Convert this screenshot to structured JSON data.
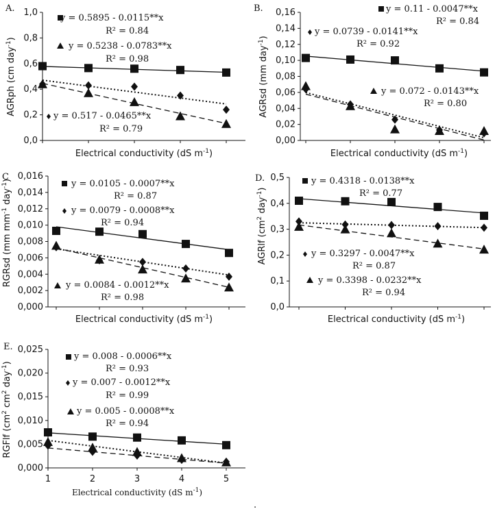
{
  "chart_data": [
    {
      "panel": "A.",
      "type": "scatter",
      "xlabel": "Electrical conductivity (dS m",
      "xlabel_sup": "-1",
      "xlabel_end": ")",
      "ylabel": "AGRph (cm day",
      "ylabel_sup": "-1",
      "ylabel_end": ")",
      "ylim": [
        0,
        1.0
      ],
      "yticks": [
        "0,0",
        "0,2",
        "0,4",
        "0,6",
        "0,8",
        "1,0"
      ],
      "x": [
        1,
        2,
        3,
        4,
        5
      ],
      "series": [
        {
          "marker": "square",
          "line": "solid",
          "values": [
            0.58,
            0.565,
            0.56,
            0.55,
            0.53
          ],
          "fit": [
            0.5895,
            -0.0115
          ],
          "eq": "y = 0.5895 - 0.0115**x",
          "r2": "R² = 0.84"
        },
        {
          "marker": "triangle",
          "line": "dashed",
          "values": [
            0.44,
            0.37,
            0.3,
            0.19,
            0.13
          ],
          "fit": [
            0.5238,
            -0.0783
          ],
          "eq": "y = 0.5238 - 0.0783**x",
          "r2": "R² = 0.98"
        },
        {
          "marker": "diamond",
          "line": "dotted",
          "values": [
            0.44,
            0.43,
            0.42,
            0.35,
            0.24
          ],
          "fit": [
            0.517,
            -0.0465
          ],
          "eq": "y = 0.517 - 0.0465**x",
          "r2": "R² = 0.79"
        }
      ]
    },
    {
      "panel": "B.",
      "type": "scatter",
      "xlabel": "Electrical conductivity (dS m",
      "xlabel_sup": "-1",
      "xlabel_end": ")",
      "ylabel": "AGRsd (mm day",
      "ylabel_sup": "-1",
      "ylabel_end": ")",
      "ylim": [
        0,
        0.16
      ],
      "yticks": [
        "0,00",
        "0,02",
        "0,04",
        "0,06",
        "0,08",
        "0,10",
        "0,12",
        "0,14",
        "0,16"
      ],
      "x": [
        1,
        2,
        3,
        4,
        5
      ],
      "series": [
        {
          "marker": "square",
          "line": "solid",
          "values": [
            0.103,
            0.101,
            0.1,
            0.09,
            0.085
          ],
          "fit": [
            0.11,
            -0.0047
          ],
          "eq": "y = 0.11 - 0.0047**x",
          "r2": "R² = 0.84"
        },
        {
          "marker": "diamond",
          "line": "dotted",
          "values": [
            0.064,
            0.045,
            0.026,
            0.013,
            0.009
          ],
          "fit": [
            0.0739,
            -0.0141
          ],
          "eq": "y = 0.0739 - 0.0141**x",
          "r2": "R² = 0.92"
        },
        {
          "marker": "triangle",
          "line": "dashed",
          "values": [
            0.068,
            0.043,
            0.014,
            0.012,
            0.012
          ],
          "fit": [
            0.072,
            -0.0143
          ],
          "eq": "y = 0.072 - 0.0143**x",
          "r2": "R² = 0.80"
        }
      ]
    },
    {
      "panel": "C",
      "type": "scatter",
      "xlabel": "Electrical conductivity (dS m",
      "xlabel_sup": "-1",
      "xlabel_end": ")",
      "ylabel": "RGRsd (mm mm",
      "ylabel_sup": "-1",
      "ylabel_end": " day",
      "ylabel_sup2": "-1",
      "ylabel_end2": ")",
      "ylim": [
        0,
        0.016
      ],
      "yticks": [
        "0,000",
        "0,002",
        "0,004",
        "0,006",
        "0,008",
        "0,010",
        "0,012",
        "0,014",
        "0,016"
      ],
      "x": [
        1,
        2,
        3,
        4,
        5
      ],
      "series": [
        {
          "marker": "square",
          "line": "solid",
          "values": [
            0.0093,
            0.0092,
            0.0089,
            0.0077,
            0.0066
          ],
          "fit": [
            0.0105,
            -0.0007
          ],
          "eq": "y = 0.0105 - 0.0007**x",
          "r2": "R² = 0.87"
        },
        {
          "marker": "diamond",
          "line": "dotted",
          "values": [
            0.0073,
            0.0057,
            0.0055,
            0.0047,
            0.0037
          ],
          "fit": [
            0.0079,
            -0.0008
          ],
          "eq": "y = 0.0079 - 0.0008**x",
          "r2": "R² = 0.94"
        },
        {
          "marker": "triangle",
          "line": "dashed",
          "values": [
            0.0075,
            0.0058,
            0.0046,
            0.0035,
            0.0024
          ],
          "fit": [
            0.0084,
            -0.0012
          ],
          "eq": "y = 0.0084 - 0.0012**x",
          "r2": "R² = 0.98"
        }
      ]
    },
    {
      "panel": "D.",
      "type": "scatter",
      "xlabel": "Electrical conductivity (dS m",
      "xlabel_sup": "-1",
      "xlabel_end": ")",
      "ylabel": "AGRlf (cm",
      "ylabel_sup": "2",
      "ylabel_end": " day",
      "ylabel_sup2": "-1",
      "ylabel_end2": ")",
      "ylim": [
        0,
        0.5
      ],
      "yticks": [
        "0,0",
        "0,1",
        "0,2",
        "0,3",
        "0,4",
        "0,5"
      ],
      "x": [
        1,
        2,
        3,
        4,
        5
      ],
      "series": [
        {
          "marker": "square",
          "line": "solid",
          "values": [
            0.41,
            0.408,
            0.405,
            0.386,
            0.352
          ],
          "fit": [
            0.4318,
            -0.0138
          ],
          "eq": "y = 0.4318 - 0.0138**x",
          "r2": "R² = 0.77"
        },
        {
          "marker": "diamond",
          "line": "dotted",
          "values": [
            0.33,
            0.318,
            0.316,
            0.312,
            0.306
          ],
          "fit": [
            0.3297,
            -0.0047
          ],
          "eq": "y = 0.3297 - 0.0047**x",
          "r2": "R² = 0.87"
        },
        {
          "marker": "triangle",
          "line": "dashed",
          "values": [
            0.31,
            0.3,
            0.285,
            0.245,
            0.222
          ],
          "fit": [
            0.3398,
            -0.0232
          ],
          "eq": "y = 0.3398 - 0.0232**x",
          "r2": "R² = 0.94"
        }
      ]
    },
    {
      "panel": "E.",
      "type": "scatter",
      "xlabel": "Electrical conductivity (dS m",
      "xlabel_sup": "-1",
      "xlabel_end": ")",
      "ylabel": "RGFlf (cm",
      "ylabel_sup": "2",
      "ylabel_end": " cm",
      "ylabel_sup2": "2",
      "ylabel_end2": " day",
      "ylabel_sup3": "-1",
      "ylabel_end3": ")",
      "ylim": [
        0,
        0.025
      ],
      "yticks": [
        "0,000",
        "0,005",
        "0,010",
        "0,015",
        "0,020",
        "0,025"
      ],
      "xticks": [
        "1",
        "2",
        "3",
        "4",
        "5"
      ],
      "x": [
        1,
        2,
        3,
        4,
        5
      ],
      "series": [
        {
          "marker": "square",
          "line": "solid",
          "values": [
            0.0075,
            0.0066,
            0.0064,
            0.0058,
            0.0048
          ],
          "fit": [
            0.008,
            -0.0006
          ],
          "eq": "y = 0.008 - 0.0006**x",
          "r2": "R² = 0.93"
        },
        {
          "marker": "diamond",
          "line": "dotted",
          "values": [
            0.0047,
            0.0034,
            0.0026,
            0.0017,
            0.0013
          ],
          "fit": [
            0.007,
            -0.0012
          ],
          "eq": "y = 0.007 - 0.0012**x",
          "r2": "R² = 0.99"
        },
        {
          "marker": "triangle",
          "line": "dashed",
          "values": [
            0.0055,
            0.0043,
            0.0034,
            0.0021,
            0.0012
          ],
          "fit": [
            0.005,
            -0.0008
          ],
          "eq": "y = 0.005 - 0.0008**x",
          "r2": "R² = 0.94"
        }
      ]
    }
  ],
  "footer_mark": "."
}
